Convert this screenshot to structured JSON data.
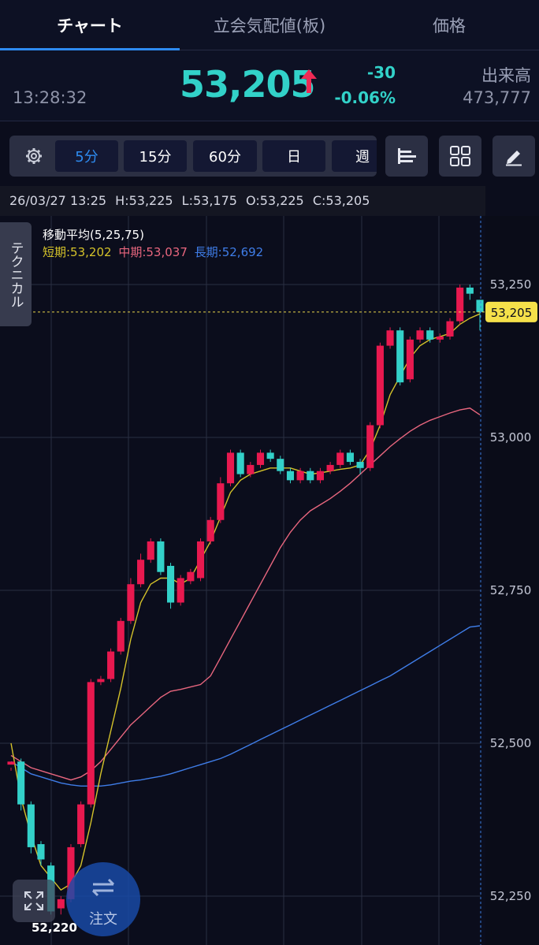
{
  "tabs": [
    {
      "label": "チャート",
      "active": true
    },
    {
      "label": "立会気配値(板)",
      "active": false
    },
    {
      "label": "価格",
      "active": false
    }
  ],
  "quote": {
    "time": "13:28:32",
    "price": "53,205",
    "change": "-30",
    "change_pct": "-0.06%",
    "volume_label": "出来高",
    "volume": "473,777",
    "price_color": "#32d2c9",
    "arrow_color": "#ef2a55"
  },
  "toolbar": {
    "settings_icon": "gear-icon",
    "intervals": [
      {
        "label": "5分",
        "active": true
      },
      {
        "label": "15分",
        "active": false
      },
      {
        "label": "60分",
        "active": false
      },
      {
        "label": "日",
        "active": false
      },
      {
        "label": "週",
        "active": false
      }
    ],
    "tools": [
      "bar-list-icon",
      "grid-icon",
      "pen-icon"
    ]
  },
  "info_bar": {
    "date": "26/03/27 13:25",
    "high": "H:53,225",
    "low": "L:53,175",
    "open": "O:53,225",
    "close": "C:53,205"
  },
  "technical_tab": "テクニカル",
  "ma_legend": {
    "title": "移動平均(5,25,75)",
    "short": "短期:53,202",
    "mid": "中期:53,037",
    "long": "長期:52,692",
    "short_color": "#d4c22a",
    "mid_color": "#e8667e",
    "long_color": "#3f7de8"
  },
  "order_button": "注文",
  "low_marker": "52,220",
  "chart_data": {
    "type": "candlestick",
    "y_ticks": [
      "53,250",
      "53,000",
      "52,750",
      "52,500",
      "52,250"
    ],
    "y_tick_values": [
      53250,
      53000,
      52750,
      52500,
      52250
    ],
    "ylim": [
      52220,
      53355
    ],
    "last_price": 53205,
    "last_price_label": "53,205",
    "up_color": "#e8194f",
    "down_color": "#33d1c9",
    "grid": true,
    "candles": [
      [
        52465,
        52470,
        52455,
        52460
      ],
      [
        52470,
        52400,
        52390,
        52475
      ],
      [
        52400,
        52330,
        52320,
        52405
      ],
      [
        52335,
        52310,
        52300,
        52340
      ],
      [
        52300,
        52225,
        52220,
        52305
      ],
      [
        52230,
        52245,
        52220,
        52250
      ],
      [
        52245,
        52330,
        52240,
        52335
      ],
      [
        52335,
        52400,
        52330,
        52405
      ],
      [
        52400,
        52600,
        52395,
        52605
      ],
      [
        52600,
        52605,
        52595,
        52610
      ],
      [
        52605,
        52650,
        52600,
        52655
      ],
      [
        52650,
        52700,
        52645,
        52705
      ],
      [
        52700,
        52760,
        52695,
        52770
      ],
      [
        52760,
        52800,
        52755,
        52810
      ],
      [
        52800,
        52830,
        52795,
        52835
      ],
      [
        52830,
        52780,
        52775,
        52835
      ],
      [
        52790,
        52730,
        52720,
        52795
      ],
      [
        52730,
        52770,
        52725,
        52775
      ],
      [
        52765,
        52780,
        52760,
        52785
      ],
      [
        52770,
        52830,
        52765,
        52835
      ],
      [
        52830,
        52865,
        52825,
        52870
      ],
      [
        52865,
        52925,
        52860,
        52935
      ],
      [
        52925,
        52975,
        52920,
        52980
      ],
      [
        52975,
        52940,
        52935,
        52980
      ],
      [
        52940,
        52955,
        52935,
        52960
      ],
      [
        52955,
        52975,
        52950,
        52980
      ],
      [
        52975,
        52965,
        52960,
        52980
      ],
      [
        52965,
        52945,
        52940,
        52970
      ],
      [
        52945,
        52930,
        52925,
        52950
      ],
      [
        52930,
        52945,
        52925,
        52950
      ],
      [
        52945,
        52930,
        52925,
        52950
      ],
      [
        52930,
        52945,
        52925,
        52950
      ],
      [
        52945,
        52955,
        52940,
        52960
      ],
      [
        52955,
        52975,
        52950,
        52980
      ],
      [
        52975,
        52960,
        52955,
        52980
      ],
      [
        52960,
        52950,
        52940,
        52965
      ],
      [
        52950,
        53020,
        52945,
        53025
      ],
      [
        53020,
        53150,
        53015,
        53155
      ],
      [
        53150,
        53175,
        53145,
        53180
      ],
      [
        53175,
        53090,
        53085,
        53180
      ],
      [
        53095,
        53160,
        53090,
        53165
      ],
      [
        53160,
        53175,
        53155,
        53180
      ],
      [
        53175,
        53160,
        53155,
        53180
      ],
      [
        53160,
        53165,
        53155,
        53170
      ],
      [
        53165,
        53190,
        53160,
        53195
      ],
      [
        53190,
        53245,
        53185,
        53250
      ],
      [
        53245,
        53235,
        53225,
        53250
      ],
      [
        53225,
        53205,
        53175,
        53225
      ]
    ],
    "ma_short": [
      52500,
      52410,
      52350,
      52300,
      52280,
      52260,
      52270,
      52300,
      52370,
      52450,
      52520,
      52590,
      52670,
      52730,
      52760,
      52770,
      52770,
      52760,
      52770,
      52800,
      52830,
      52870,
      52910,
      52930,
      52940,
      52945,
      52950,
      52950,
      52950,
      52945,
      52940,
      52942,
      52945,
      52948,
      52950,
      52955,
      52980,
      53020,
      53070,
      53100,
      53130,
      53150,
      53160,
      53165,
      53170,
      53185,
      53195,
      53202
    ],
    "ma_mid": [
      52480,
      52470,
      52460,
      52455,
      52450,
      52445,
      52440,
      52445,
      52455,
      52470,
      52490,
      52510,
      52530,
      52545,
      52560,
      52575,
      52585,
      52588,
      52592,
      52596,
      52610,
      52640,
      52670,
      52700,
      52730,
      52760,
      52790,
      52820,
      52845,
      52865,
      52880,
      52890,
      52900,
      52912,
      52925,
      52940,
      52955,
      52970,
      52985,
      52998,
      53010,
      53020,
      53028,
      53034,
      53040,
      53045,
      53048,
      53037
    ],
    "ma_long": [
      52470,
      52460,
      52450,
      52445,
      52440,
      52435,
      52432,
      52430,
      52430,
      52430,
      52432,
      52435,
      52438,
      52440,
      52443,
      52446,
      52450,
      52455,
      52460,
      52465,
      52470,
      52475,
      52482,
      52490,
      52498,
      52506,
      52514,
      52522,
      52530,
      52538,
      52546,
      52554,
      52562,
      52570,
      52578,
      52586,
      52594,
      52602,
      52610,
      52620,
      52630,
      52640,
      52650,
      52660,
      52670,
      52680,
      52690,
      52692
    ]
  }
}
